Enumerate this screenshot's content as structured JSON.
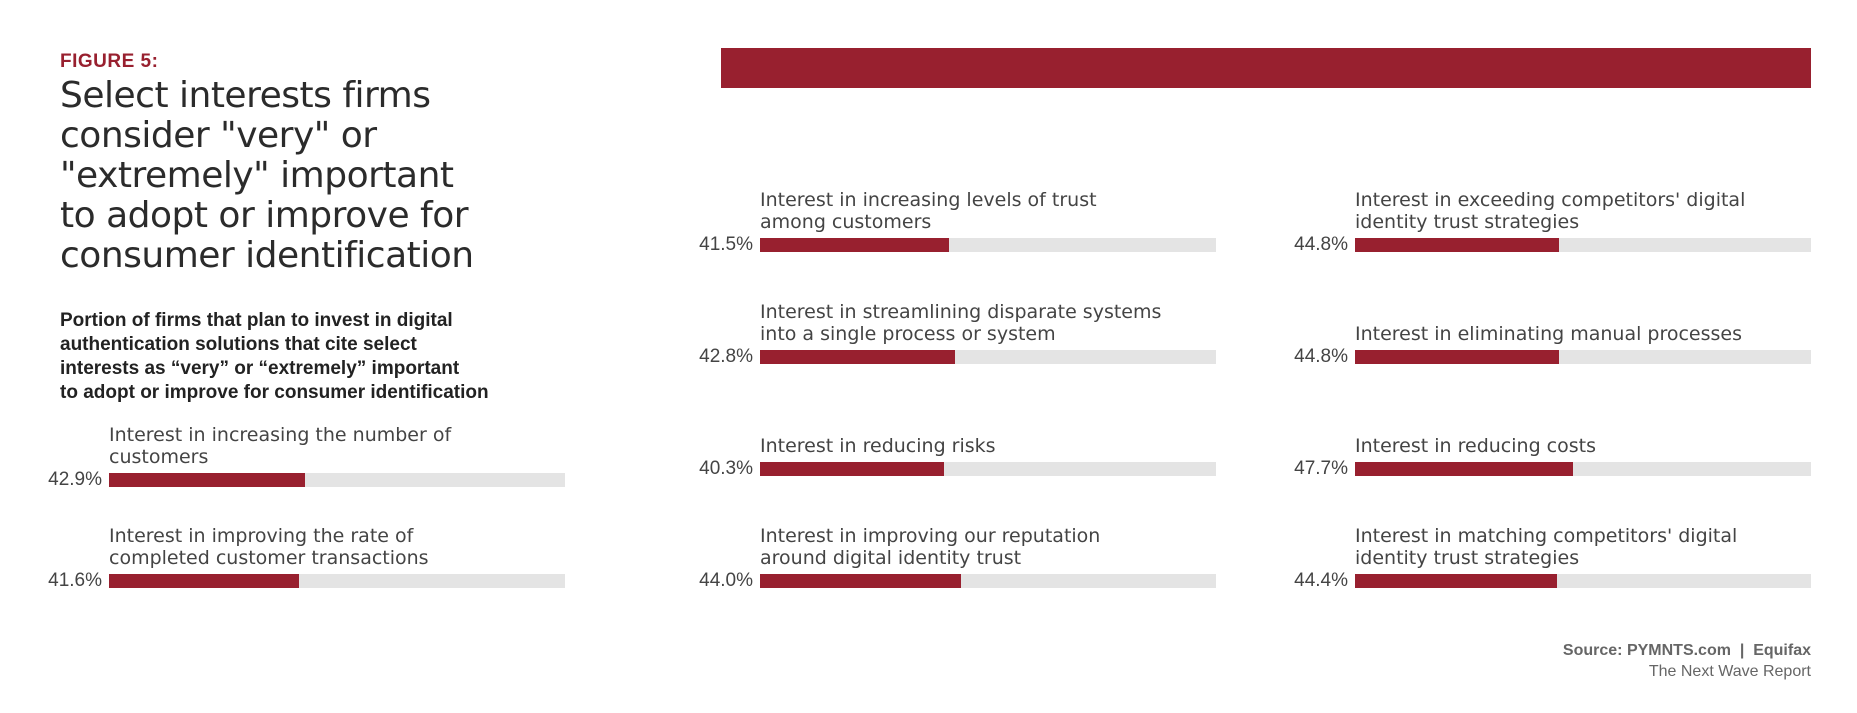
{
  "figure_label": "FIGURE 5:",
  "title_lines": [
    "Select interests firms",
    "consider \"very\" or",
    "\"extremely\" important",
    "to adopt or improve for",
    "consumer identification"
  ],
  "subtitle_lines": [
    "Portion of firms that plan to invest in digital",
    "authentication solutions that cite select",
    "interests as “very” or “extremely” important",
    "to adopt or improve for consumer identification"
  ],
  "colors": {
    "accent": "#98202f",
    "track": "#e4e4e4"
  },
  "chart_data": {
    "type": "bar",
    "orientation": "horizontal",
    "title": "Select interests firms consider \"very\" or \"extremely\" important to adopt or improve for consumer identification",
    "unit": "%",
    "xlim": [
      0,
      100
    ],
    "items": [
      {
        "label_lines": [
          "Interest in increasing the number of",
          "customers"
        ],
        "value": 42.9,
        "display": "42.9%"
      },
      {
        "label_lines": [
          "Interest in improving the rate of",
          "completed customer transactions"
        ],
        "value": 41.6,
        "display": "41.6%"
      },
      {
        "label_lines": [
          "Interest in increasing levels of trust",
          "among customers"
        ],
        "value": 41.5,
        "display": "41.5%"
      },
      {
        "label_lines": [
          "Interest in streamlining disparate systems",
          "into a single process or system"
        ],
        "value": 42.8,
        "display": "42.8%"
      },
      {
        "label_lines": [
          "Interest in reducing risks"
        ],
        "value": 40.3,
        "display": "40.3%"
      },
      {
        "label_lines": [
          "Interest in improving our reputation",
          "around digital identity trust"
        ],
        "value": 44.0,
        "display": "44.0%"
      },
      {
        "label_lines": [
          "Interest in exceeding competitors' digital",
          "identity trust strategies"
        ],
        "value": 44.8,
        "display": "44.8%"
      },
      {
        "label_lines": [
          "Interest in eliminating manual processes"
        ],
        "value": 44.8,
        "display": "44.8%"
      },
      {
        "label_lines": [
          "Interest in reducing costs"
        ],
        "value": 47.7,
        "display": "47.7%"
      },
      {
        "label_lines": [
          "Interest in matching competitors' digital",
          "identity trust strategies"
        ],
        "value": 44.4,
        "display": "44.4%"
      }
    ]
  },
  "source": {
    "line1": "Source: PYMNTS.com  |  Equifax",
    "line2": "The Next Wave Report"
  }
}
